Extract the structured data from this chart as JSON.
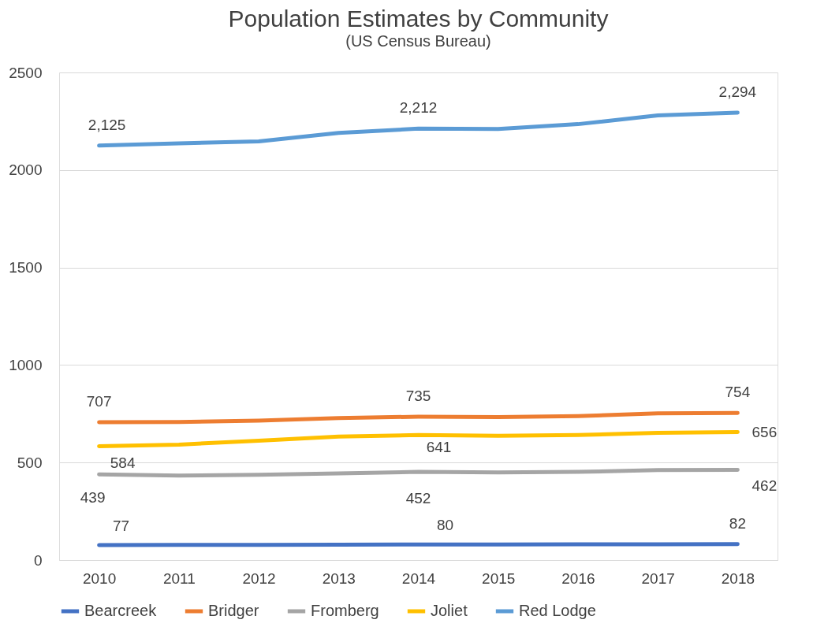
{
  "chart_data": {
    "type": "line",
    "title": "Population Estimates by Community",
    "subtitle": "(US Census Bureau)",
    "categories": [
      "2010",
      "2011",
      "2012",
      "2013",
      "2014",
      "2015",
      "2016",
      "2017",
      "2018"
    ],
    "series": [
      {
        "name": "Bearcreek",
        "color": "#4472c4",
        "values": [
          77,
          78,
          78,
          79,
          80,
          80,
          81,
          81,
          82
        ],
        "value_labels": [
          "77",
          null,
          null,
          null,
          "80",
          null,
          null,
          null,
          "82"
        ]
      },
      {
        "name": "Bridger",
        "color": "#ed7d31",
        "values": [
          707,
          708,
          715,
          728,
          735,
          733,
          738,
          752,
          754
        ],
        "value_labels": [
          "707",
          null,
          null,
          null,
          "735",
          null,
          null,
          null,
          "754"
        ]
      },
      {
        "name": "Fromberg",
        "color": "#a5a5a5",
        "values": [
          439,
          433,
          437,
          444,
          452,
          449,
          452,
          461,
          462
        ],
        "value_labels": [
          "439",
          null,
          null,
          null,
          "452",
          null,
          null,
          null,
          "462"
        ]
      },
      {
        "name": "Joliet",
        "color": "#ffc000",
        "values": [
          584,
          592,
          612,
          633,
          641,
          637,
          641,
          652,
          656
        ],
        "value_labels": [
          "584",
          null,
          null,
          null,
          "641",
          null,
          null,
          null,
          "656"
        ]
      },
      {
        "name": "Red Lodge",
        "color": "#5b9bd5",
        "values": [
          2125,
          2137,
          2147,
          2190,
          2212,
          2210,
          2235,
          2280,
          2294
        ],
        "value_labels": [
          "2,125",
          null,
          null,
          null,
          "2,212",
          null,
          null,
          null,
          "2,294"
        ]
      }
    ],
    "ylim": [
      0,
      2500
    ],
    "yticks": [
      0,
      500,
      1000,
      1500,
      2000,
      2500
    ],
    "grid": "y",
    "legend": "bottom",
    "marker": "none",
    "line_style": "solid"
  }
}
